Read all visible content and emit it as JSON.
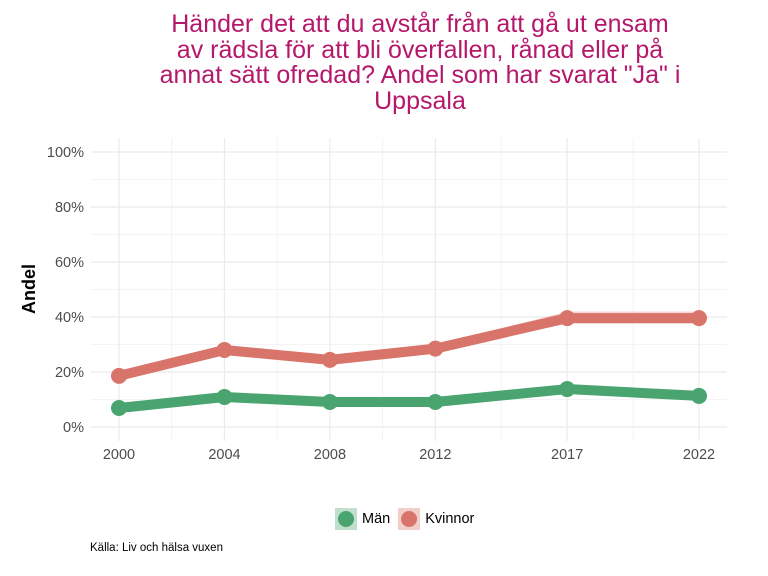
{
  "chart_data": {
    "type": "line",
    "title_lines": [
      "Händer det att du avstår från att gå ut ensam",
      "av rädsla för att bli överfallen, rånad eller på",
      "annat sätt ofredad? Andel som har svarat \"Ja\" i",
      "Uppsala"
    ],
    "title": "Händer det att du avstår från att gå ut ensam av rädsla för att bli överfallen, rånad eller på annat sätt ofredad? Andel som har svarat \"Ja\" i Uppsala",
    "xlabel": "",
    "ylabel": "Andel",
    "x": [
      2000,
      2004,
      2008,
      2012,
      2017,
      2022
    ],
    "x_tick_labels": [
      "2000",
      "2004",
      "2008",
      "2012",
      "2017",
      "2022"
    ],
    "xlim": [
      1997.3,
      2023.1
    ],
    "ylim": [
      0,
      100
    ],
    "y_ticks": [
      0,
      20,
      40,
      60,
      80,
      100
    ],
    "y_tick_labels": [
      "0%",
      "20%",
      "40%",
      "60%",
      "80%",
      "100%"
    ],
    "grid": true,
    "legend_position": "bottom",
    "series": [
      {
        "name": "Män",
        "color": "#4aa470",
        "values": [
          6.9,
          10.9,
          9.1,
          9.1,
          13.8,
          11.3
        ],
        "ci_low": [
          6.2,
          10.2,
          8.4,
          8.4,
          12.3,
          10.2
        ],
        "ci_high": [
          7.6,
          11.6,
          9.8,
          9.8,
          15.4,
          12.9
        ]
      },
      {
        "name": "Kvinnor",
        "color": "#d9746a",
        "values": [
          18.6,
          28.0,
          24.4,
          28.5,
          39.6,
          39.6
        ],
        "ci_low": [
          17.8,
          27.2,
          23.6,
          27.5,
          37.6,
          37.6
        ],
        "ci_high": [
          19.4,
          28.8,
          25.2,
          29.8,
          42.0,
          42.0
        ]
      }
    ],
    "caption": "Källa: Liv och hälsa vuxen"
  }
}
